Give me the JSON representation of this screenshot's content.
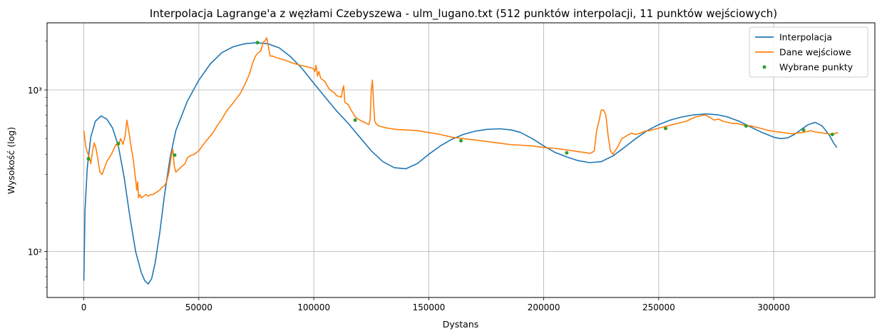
{
  "chart_data": {
    "type": "line",
    "title": "Interpolacja Lagrange'a z węzłami Czebyszewa - ulm_lugano.txt (512 punktów interpolacji, 11 punktów wejściowych)",
    "xlabel": "Dystans",
    "ylabel": "Wysokość (log)",
    "xlim": [
      -16000,
      344000
    ],
    "ylim": [
      52,
      2600
    ],
    "yscale": "log",
    "grid": true,
    "legend_position": "top-right",
    "x_ticks": [
      0,
      50000,
      100000,
      150000,
      200000,
      250000,
      300000
    ],
    "x_tick_labels": [
      "0",
      "50000",
      "100000",
      "150000",
      "200000",
      "250000",
      "300000"
    ],
    "y_ticks": [
      100,
      1000
    ],
    "y_tick_labels": [
      "10²",
      "10³"
    ],
    "series": [
      {
        "name": "Interpolacja",
        "color": "#1f77b4",
        "marker": "line",
        "x": [
          0,
          500,
          1500,
          3000,
          5000,
          7500,
          10000,
          12500,
          15000,
          17500,
          20000,
          22500,
          25000,
          26500,
          28000,
          29500,
          31000,
          33000,
          35000,
          37500,
          40000,
          45000,
          50000,
          55000,
          60000,
          65000,
          70000,
          75000,
          80000,
          85000,
          90000,
          95000,
          100000,
          105000,
          110000,
          115000,
          120000,
          125000,
          130000,
          135000,
          140000,
          145000,
          150000,
          155000,
          160000,
          165000,
          170000,
          175000,
          181000,
          186000,
          190000,
          195000,
          200000,
          205000,
          210000,
          215000,
          220000,
          225000,
          230000,
          235000,
          240000,
          245000,
          250000,
          255000,
          260000,
          265000,
          271000,
          276000,
          280000,
          285000,
          290000,
          295000,
          300000,
          303000,
          306000,
          309000,
          312000,
          315000,
          318000,
          321000,
          324000,
          326000,
          327500
        ],
        "y": [
          66,
          180,
          330,
          510,
          640,
          690,
          660,
          580,
          450,
          290,
          165,
          100,
          74,
          66,
          63,
          68,
          85,
          130,
          220,
          380,
          560,
          850,
          1150,
          1450,
          1700,
          1850,
          1930,
          1960,
          1930,
          1820,
          1600,
          1350,
          1100,
          900,
          740,
          620,
          510,
          420,
          360,
          330,
          325,
          350,
          400,
          450,
          495,
          530,
          555,
          570,
          575,
          565,
          545,
          500,
          450,
          410,
          385,
          365,
          355,
          360,
          390,
          440,
          500,
          560,
          610,
          650,
          680,
          700,
          710,
          700,
          680,
          640,
          590,
          545,
          510,
          500,
          505,
          530,
          570,
          610,
          630,
          600,
          530,
          470,
          440
        ]
      },
      {
        "name": "Dane wejściowe",
        "color": "#ff7f0e",
        "marker": "line",
        "x": [
          0,
          800,
          1500,
          2200,
          3000,
          3800,
          4500,
          5200,
          6000,
          7000,
          8000,
          9000,
          10000,
          11000,
          12000,
          13000,
          14000,
          15000,
          16000,
          17000,
          18000,
          18700,
          19500,
          20500,
          21500,
          22500,
          23000,
          23400,
          23800,
          24300,
          25000,
          26000,
          27000,
          28000,
          29000,
          30000,
          31000,
          32000,
          33000,
          34000,
          35000,
          36000,
          37000,
          38000,
          38700,
          39300,
          40000,
          41000,
          42000,
          43000,
          44000,
          45000,
          46000,
          48000,
          50000,
          52000,
          54000,
          56000,
          58000,
          60000,
          62000,
          64000,
          66000,
          68000,
          70000,
          72000,
          73000,
          74000,
          75000,
          76000,
          77000,
          78000,
          78700,
          79500,
          81000,
          82000,
          84000,
          86000,
          88000,
          90000,
          92000,
          94000,
          96000,
          98000,
          100000,
          100500,
          101000,
          101600,
          102200,
          103000,
          104000,
          105000,
          106000,
          107000,
          108000,
          109000,
          110000,
          111000,
          112000,
          112500,
          113000,
          113500,
          114000,
          115000,
          116000,
          117000,
          118000,
          120000,
          122000,
          123000,
          124000,
          124500,
          125000,
          125500,
          126000,
          126500,
          127000,
          128000,
          130000,
          132000,
          134000,
          136000,
          140000,
          145000,
          150000,
          155000,
          160000,
          165000,
          170000,
          175000,
          180000,
          185000,
          190000,
          195000,
          200000,
          205000,
          210000,
          215000,
          218000,
          220000,
          221000,
          222000,
          223000,
          224000,
          225000,
          226000,
          227000,
          228000,
          229000,
          230000,
          231000,
          232000,
          233000,
          234000,
          236000,
          238000,
          240000,
          242000,
          244000,
          246000,
          248000,
          250000,
          252000,
          254000,
          256000,
          258000,
          260000,
          262000,
          264000,
          266000,
          268000,
          270000,
          272000,
          274000,
          276000,
          278000,
          280000,
          282000,
          284000,
          286000,
          288000,
          290000,
          292000,
          294000,
          296000,
          298000,
          300000,
          302000,
          304000,
          306000,
          308000,
          310000,
          312000,
          314000,
          316000,
          318000,
          320000,
          322000,
          324000,
          325000,
          326000,
          327000,
          328000
        ],
        "y": [
          560,
          450,
          410,
          390,
          350,
          420,
          470,
          440,
          380,
          310,
          300,
          330,
          360,
          380,
          400,
          430,
          460,
          450,
          500,
          460,
          520,
          650,
          560,
          450,
          370,
          280,
          240,
          270,
          215,
          225,
          215,
          220,
          225,
          220,
          225,
          225,
          230,
          235,
          240,
          250,
          255,
          270,
          310,
          390,
          430,
          340,
          310,
          320,
          330,
          340,
          350,
          380,
          390,
          400,
          420,
          460,
          500,
          540,
          600,
          660,
          740,
          800,
          870,
          950,
          1080,
          1250,
          1400,
          1550,
          1650,
          1700,
          1750,
          1980,
          2000,
          2100,
          1620,
          1620,
          1580,
          1550,
          1520,
          1480,
          1450,
          1420,
          1400,
          1380,
          1350,
          1300,
          1420,
          1220,
          1300,
          1180,
          1150,
          1120,
          1050,
          1000,
          980,
          960,
          920,
          910,
          900,
          1000,
          1060,
          840,
          830,
          810,
          760,
          720,
          680,
          650,
          630,
          620,
          610,
          660,
          1000,
          1150,
          820,
          640,
          620,
          600,
          590,
          580,
          575,
          570,
          565,
          560,
          545,
          530,
          510,
          500,
          490,
          480,
          470,
          460,
          455,
          450,
          440,
          435,
          425,
          415,
          410,
          405,
          410,
          420,
          560,
          640,
          750,
          750,
          700,
          520,
          420,
          400,
          420,
          440,
          470,
          500,
          520,
          540,
          530,
          540,
          555,
          560,
          570,
          580,
          590,
          600,
          610,
          620,
          630,
          640,
          660,
          680,
          690,
          700,
          680,
          650,
          660,
          640,
          630,
          620,
          620,
          610,
          600,
          600,
          590,
          580,
          570,
          560,
          555,
          550,
          545,
          540,
          535,
          540,
          545,
          550,
          560,
          550,
          545,
          540,
          535,
          530,
          535,
          540,
          545
        ]
      },
      {
        "name": "Wybrane punkty",
        "color": "#2ca02c",
        "marker": "point",
        "x": [
          2000,
          15000,
          39500,
          75500,
          118000,
          164000,
          210000,
          253000,
          288000,
          313000,
          325500
        ],
        "y": [
          375,
          465,
          395,
          1960,
          650,
          485,
          408,
          578,
          598,
          565,
          530
        ]
      }
    ]
  }
}
